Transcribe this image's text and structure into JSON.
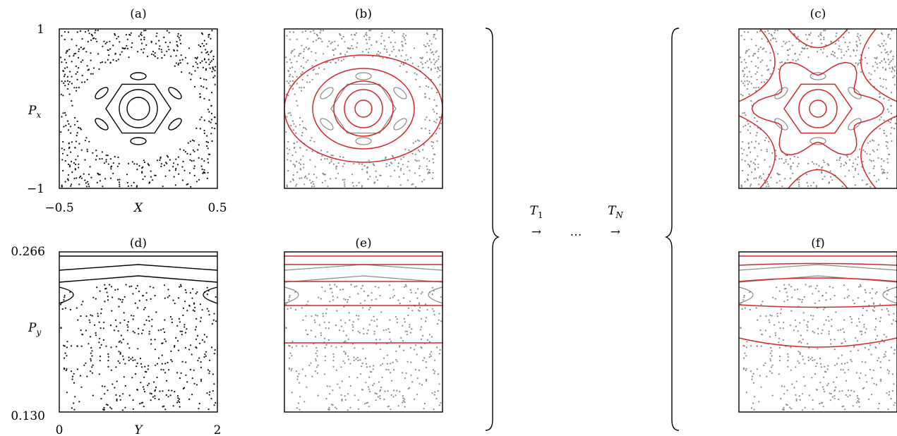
{
  "colors": {
    "points_dark": "#111111",
    "points_gray": "#8a8a8a",
    "curve_red": "#d62728",
    "curve_black": "#000000"
  },
  "panels": {
    "a": {
      "label": "(a)"
    },
    "b": {
      "label": "(b)"
    },
    "c": {
      "label": "(c)"
    },
    "d": {
      "label": "(d)"
    },
    "e": {
      "label": "(e)"
    },
    "f": {
      "label": "(f)"
    }
  },
  "axes_top": {
    "ylabel": "P",
    "ylabel_sub": "x",
    "xlabel": "X",
    "yticks": [
      "1",
      "−1"
    ],
    "xticks": [
      "−0.5",
      "0.5"
    ]
  },
  "axes_bottom": {
    "ylabel": "P",
    "ylabel_sub": "y",
    "xlabel": "Y",
    "yticks": [
      "0.266",
      "0.130"
    ],
    "xticks": [
      "0",
      "2"
    ]
  },
  "transforms": {
    "first": "T",
    "first_sub": "1",
    "last": "T",
    "last_sub": "N",
    "arrow": "→",
    "ellipsis": "…"
  },
  "chart_data": [
    {
      "panel": "a",
      "type": "scatter",
      "title": "(a)",
      "xlabel": "X",
      "ylabel": "P_x",
      "xlim": [
        -0.5,
        0.5
      ],
      "ylim": [
        -1,
        1
      ],
      "grid": false
    },
    {
      "panel": "b",
      "type": "scatter",
      "title": "(b)",
      "xlim": [
        -0.5,
        0.5
      ],
      "ylim": [
        -1,
        1
      ],
      "grid": false
    },
    {
      "panel": "c",
      "type": "scatter",
      "title": "(c)",
      "xlim": [
        -0.5,
        0.5
      ],
      "ylim": [
        -1,
        1
      ],
      "grid": false
    },
    {
      "panel": "d",
      "type": "scatter",
      "title": "(d)",
      "xlabel": "Y",
      "ylabel": "P_y",
      "xlim": [
        0,
        2
      ],
      "ylim": [
        0.13,
        0.266
      ],
      "grid": false
    },
    {
      "panel": "e",
      "type": "scatter",
      "title": "(e)",
      "xlim": [
        0,
        2
      ],
      "ylim": [
        0.13,
        0.266
      ],
      "grid": false
    },
    {
      "panel": "f",
      "type": "scatter",
      "title": "(f)",
      "xlim": [
        0,
        2
      ],
      "ylim": [
        0.13,
        0.266
      ],
      "grid": false
    }
  ]
}
